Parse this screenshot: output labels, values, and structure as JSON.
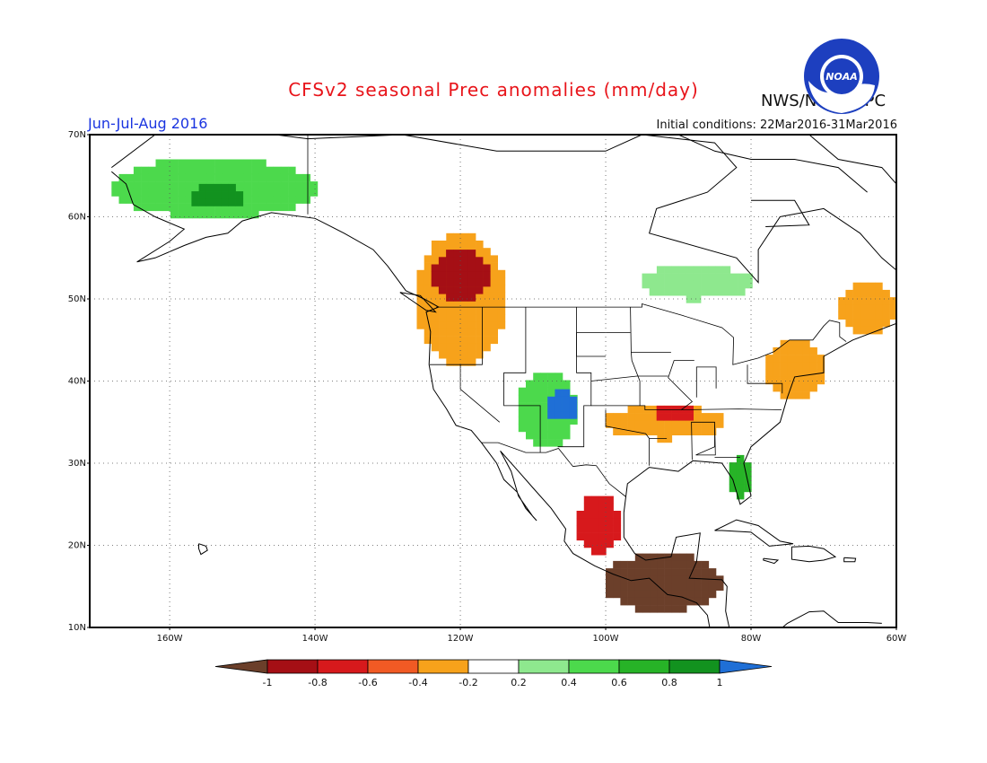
{
  "header": {
    "title": "CFSv2 seasonal Prec anomalies (mm/day)",
    "organization": "NWS/NCEP/CPC",
    "season": "Jun-Jul-Aug 2016",
    "initial_conditions": "Initial conditions: 22Mar2016-31Mar2016",
    "logo_text": "NOAA"
  },
  "axes": {
    "lat_ticks": [
      {
        "value": 70,
        "label": "70N"
      },
      {
        "value": 60,
        "label": "60N"
      },
      {
        "value": 50,
        "label": "50N"
      },
      {
        "value": 40,
        "label": "40N"
      },
      {
        "value": 30,
        "label": "30N"
      },
      {
        "value": 20,
        "label": "20N"
      },
      {
        "value": 10,
        "label": "10N"
      }
    ],
    "lon_ticks": [
      {
        "value": -160,
        "label": "160W"
      },
      {
        "value": -140,
        "label": "140W"
      },
      {
        "value": -120,
        "label": "120W"
      },
      {
        "value": -100,
        "label": "100W"
      },
      {
        "value": -80,
        "label": "80W"
      },
      {
        "value": -60,
        "label": "60W"
      }
    ],
    "lon_range": [
      -171,
      -60
    ],
    "lat_range": [
      10,
      70
    ],
    "gridlines": "dotted"
  },
  "colorbar": {
    "labels": [
      "-1",
      "-0.8",
      "-0.6",
      "-0.4",
      "-0.2",
      "0.2",
      "0.4",
      "0.6",
      "0.8",
      "1"
    ],
    "colors": {
      "below_-1": "#6b3f2a",
      "-1_-0.8": "#a50f15",
      "-0.8_-0.6": "#d7191c",
      "-0.6_-0.4": "#f15a24",
      "-0.4_-0.2": "#f7a21b",
      "-0.2_0.2": "#ffffff",
      "0.2_0.4": "#8ee88e",
      "0.4_0.6": "#4cd94c",
      "0.6_0.8": "#27b327",
      "0.8_1": "#12921f",
      "above_1": "#1f6fd6"
    }
  },
  "anomaly_regions": [
    {
      "name": "alaska",
      "level": "0.4_0.6",
      "lon": [
        -168,
        -140
      ],
      "lat": [
        60,
        67
      ]
    },
    {
      "name": "alaska-core",
      "level": "0.8_1",
      "lon": [
        -157,
        -150
      ],
      "lat": [
        61,
        64
      ]
    },
    {
      "name": "pacific-northwest",
      "level": "-0.4_-0.2",
      "lon": [
        -126,
        -114
      ],
      "lat": [
        42,
        58
      ]
    },
    {
      "name": "bc-core",
      "level": "-1_-0.8",
      "lon": [
        -124,
        -116
      ],
      "lat": [
        50,
        56
      ]
    },
    {
      "name": "four-corners",
      "level": "0.4_0.6",
      "lon": [
        -112,
        -104
      ],
      "lat": [
        32,
        41
      ]
    },
    {
      "name": "four-corners-core",
      "level": "above_1",
      "lon": [
        -108,
        -104
      ],
      "lat": [
        35,
        39
      ]
    },
    {
      "name": "southern-plains",
      "level": "-0.4_-0.2",
      "lon": [
        -100,
        -84
      ],
      "lat": [
        33,
        37
      ]
    },
    {
      "name": "ozarks-core",
      "level": "-0.8_-0.6",
      "lon": [
        -93,
        -88
      ],
      "lat": [
        35,
        37
      ]
    },
    {
      "name": "northeast",
      "level": "-0.4_-0.2",
      "lon": [
        -78,
        -70
      ],
      "lat": [
        38,
        45
      ]
    },
    {
      "name": "florida",
      "level": "0.6_0.8",
      "lon": [
        -83,
        -80
      ],
      "lat": [
        26,
        31
      ]
    },
    {
      "name": "mexico",
      "level": "-0.8_-0.6",
      "lon": [
        -104,
        -98
      ],
      "lat": [
        19,
        26
      ]
    },
    {
      "name": "central-america",
      "level": "below_-1",
      "lon": [
        -100,
        -84
      ],
      "lat": [
        12,
        19
      ]
    },
    {
      "name": "quebec",
      "level": "0.2_0.4",
      "lon": [
        -95,
        -80
      ],
      "lat": [
        50,
        54
      ]
    },
    {
      "name": "labrador",
      "level": "-0.4_-0.2",
      "lon": [
        -68,
        -60
      ],
      "lat": [
        46,
        52
      ]
    }
  ]
}
